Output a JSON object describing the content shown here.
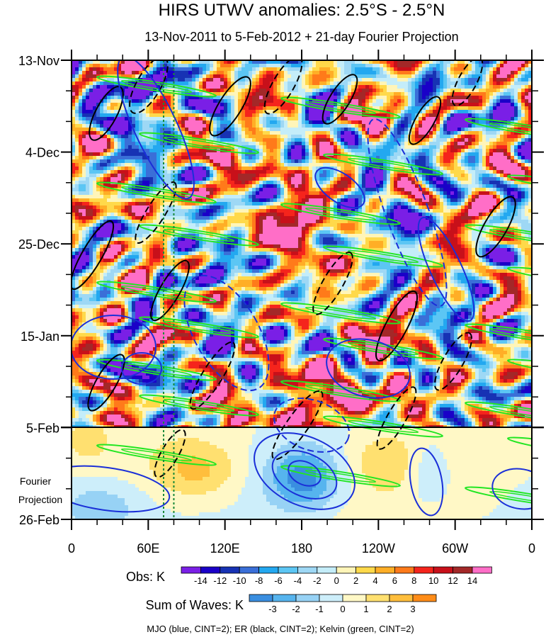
{
  "chart_data": {
    "type": "heatmap",
    "title": "HIRS UTWV anomalies: 2.5°S - 2.5°N",
    "subtitle": "13-Nov-2011 to 5-Feb-2012 + 21-day Fourier Projection",
    "y_axis": {
      "ticks": [
        "13-Nov",
        "4-Dec",
        "25-Dec",
        "15-Jan",
        "5-Feb",
        "26-Feb"
      ],
      "range": [
        "13-Nov-2011",
        "26-Feb-2012"
      ],
      "observation_end": "5-Feb",
      "projection_label": [
        "Fourier",
        "Projection"
      ]
    },
    "x_axis": {
      "ticks": [
        "0",
        "60E",
        "120E",
        "180",
        "120W",
        "60W",
        "0"
      ],
      "lon_range": [
        0,
        360
      ]
    },
    "obs_colorbar": {
      "label": "Obs: K",
      "levels": [
        "-14",
        "-12",
        "-10",
        "-8",
        "-6",
        "-4",
        "-2",
        "0",
        "2",
        "4",
        "6",
        "8",
        "10",
        "12",
        "14"
      ],
      "colors": [
        "#7a1fe6",
        "#1a00c8",
        "#1732b4",
        "#3a6fd8",
        "#23a8f0",
        "#5cc6f4",
        "#9ed8f5",
        "#c4edf9",
        "#fff5b8",
        "#ffd94a",
        "#ffae26",
        "#ff7a1a",
        "#f5241c",
        "#c8101a",
        "#a32828",
        "#ff6ec7"
      ]
    },
    "waves_colorbar": {
      "label": "Sum of Waves: K",
      "levels": [
        "-3",
        "-2",
        "-1",
        "0",
        "1",
        "2",
        "3"
      ],
      "colors": [
        "#3a8ee0",
        "#56b4ee",
        "#97d2f5",
        "#cdeefa",
        "#fff8c6",
        "#ffe070",
        "#ffbe3c",
        "#ff8c18"
      ]
    },
    "footnote": "MJO (blue, CINT=2); ER (black, CINT=2); Kelvin (green, CINT=2)",
    "wave_colors": {
      "MJO": "#1a2fd8",
      "ER": "#000000",
      "Kelvin": "#22e622"
    },
    "reference_lines": {
      "color": "#1a8a3a",
      "lons_deg_east": [
        72,
        80
      ]
    }
  }
}
